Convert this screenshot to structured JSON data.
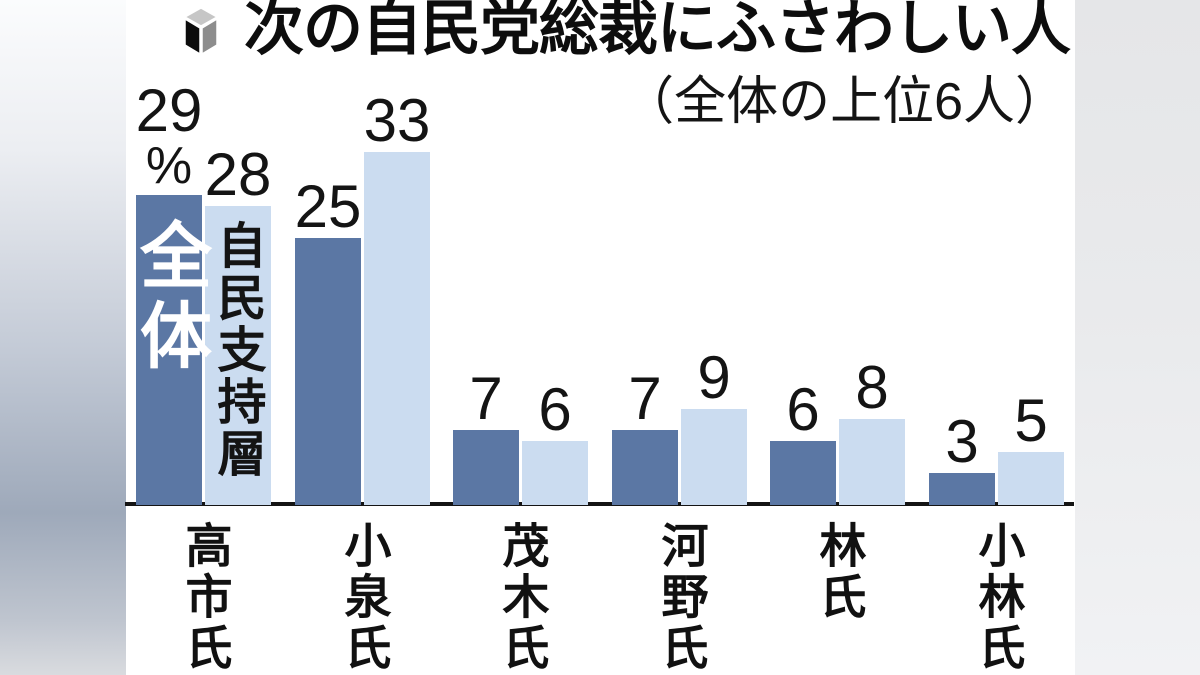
{
  "header": {
    "icon": "ballot-box-cube-icon",
    "title": "次の自民党総裁にふさわしい人",
    "subtitle": "（全体の上位6人）"
  },
  "chart_data": {
    "type": "bar",
    "title": "次の自民党総裁にふさわしい人",
    "subtitle": "（全体の上位6人）",
    "categories": [
      "高市氏",
      "小泉氏",
      "茂木氏",
      "河野氏",
      "林氏",
      "小林氏"
    ],
    "series": [
      {
        "name": "全体",
        "values": [
          29,
          25,
          7,
          7,
          6,
          3
        ]
      },
      {
        "name": "自民支持層",
        "values": [
          28,
          33,
          6,
          9,
          8,
          5
        ]
      }
    ],
    "value_unit": "%",
    "unit_note": "% shown once under the first 全体 value (29)",
    "ylim": [
      0,
      35
    ],
    "grid": false,
    "legend_position": "vertical text inside first pair of bars",
    "series_colors": [
      "#5b77a4",
      "#cbdcf0"
    ],
    "series_text_colors": [
      "#ffffff",
      "#141414"
    ],
    "axis_color": "#141414"
  },
  "colors": {
    "bar_overall": "#5b77a4",
    "bar_ldp_supporters": "#cbdcf0",
    "axis": "#141414",
    "background": "#ffffff"
  }
}
